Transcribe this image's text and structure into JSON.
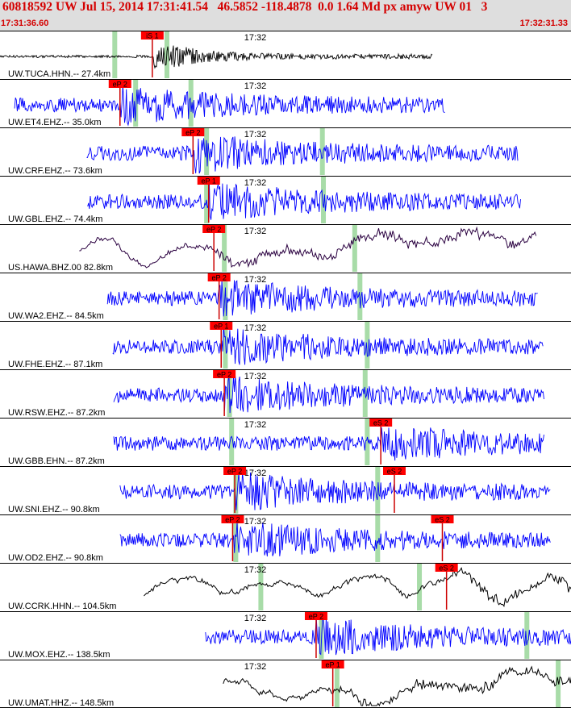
{
  "header": {
    "event_line": "60818592 UW Jul 15, 2014 17:31:41.54   46.5852 -118.4878  0.0 1.64 Md px amyw UW 01   3",
    "start_time": "17:31:36.60",
    "end_time": "17:32:31.33"
  },
  "colors": {
    "header_bg": "#dedede",
    "header_text": "#d40000",
    "pick_box": "#ff0000",
    "pick_line": "#cc0000",
    "trace_blue": "#0000ff",
    "trace_black": "#000000",
    "trace_purple": "#2a0040",
    "marker_green": "#a8dca8",
    "separator": "#000000"
  },
  "minute_mark_label": "17:32",
  "chart_data": {
    "type": "seismogram",
    "title": "60818592 UW Jul 15, 2014 17:31:41.54   46.5852 -118.4878  0.0 1.64 Md px amyw UW 01   3",
    "x_start": "17:31:36.60",
    "x_end": "17:32:31.33",
    "x_tick": "17:32",
    "series": [
      {
        "name": "UW.TUCA.HHN.--",
        "distance": "27.4km",
        "color": "black",
        "picks": [
          {
            "label": "iS 1",
            "t": 14.6
          }
        ],
        "green_markers": [
          11.0,
          16.0
        ],
        "signal": {
          "start": 0.0,
          "end": 41.5
        }
      },
      {
        "name": "UW.ET4.EHZ.--",
        "distance": "35.0km",
        "color": "blue",
        "picks": [
          {
            "label": "eP 2",
            "t": 11.5
          }
        ],
        "green_markers": [
          13.0,
          18.3
        ],
        "signal": {
          "start": 1.4,
          "end": 42.7
        }
      },
      {
        "name": "UW.CRF.EHZ.--",
        "distance": "73.6km",
        "color": "blue",
        "picks": [
          {
            "label": "eP 2",
            "t": 18.5
          }
        ],
        "green_markers": [
          19.8,
          30.9
        ],
        "signal": {
          "start": 8.3,
          "end": 49.7
        }
      },
      {
        "name": "UW.GBL.EHZ.--",
        "distance": "74.4km",
        "color": "blue",
        "picks": [
          {
            "label": "eP 1",
            "t": 20.0
          }
        ],
        "green_markers": [
          19.8,
          31.0
        ],
        "signal": {
          "start": 8.4,
          "end": 49.9
        }
      },
      {
        "name": "US.HAWA.BHZ.00",
        "distance": "82.8km",
        "color": "purple",
        "picks": [
          {
            "label": "eP 2",
            "t": 20.5
          }
        ],
        "green_markers": [
          21.5,
          34.0
        ],
        "signal": {
          "start": 7.6,
          "end": 51.4
        }
      },
      {
        "name": "UW.WA2.EHZ.--",
        "distance": "84.5km",
        "color": "blue",
        "picks": [
          {
            "label": "eP 2",
            "t": 21.0
          }
        ],
        "green_markers": [
          21.6,
          34.5
        ],
        "signal": {
          "start": 10.3,
          "end": 51.6
        }
      },
      {
        "name": "UW.FHE.EHZ.--",
        "distance": "87.1km",
        "color": "blue",
        "picks": [
          {
            "label": "eP 1",
            "t": 21.2
          }
        ],
        "green_markers": [
          21.6,
          35.2
        ],
        "signal": {
          "start": 10.8,
          "end": 52.1
        }
      },
      {
        "name": "UW.RSW.EHZ.--",
        "distance": "87.2km",
        "color": "blue",
        "picks": [
          {
            "label": "eP 2",
            "t": 21.5
          }
        ],
        "green_markers": [
          22.0,
          35.0
        ],
        "signal": {
          "start": 10.9,
          "end": 52.2
        }
      },
      {
        "name": "UW.GBB.EHN.--",
        "distance": "87.2km",
        "color": "blue",
        "picks": [
          {
            "label": "eS 2",
            "t": 36.5
          }
        ],
        "green_markers": [
          22.2,
          35.2
        ],
        "signal": {
          "start": 10.9,
          "end": 52.2
        }
      },
      {
        "name": "UW.SNI.EHZ.--",
        "distance": "90.8km",
        "color": "blue",
        "picks": [
          {
            "label": "eP 2",
            "t": 22.5
          },
          {
            "label": "eS 2",
            "t": 37.8
          }
        ],
        "green_markers": [
          22.6,
          36.2
        ],
        "signal": {
          "start": 11.5,
          "end": 52.8
        }
      },
      {
        "name": "UW.OD2.EHZ.--",
        "distance": "90.8km",
        "color": "blue",
        "picks": [
          {
            "label": "eP 2",
            "t": 22.3
          },
          {
            "label": "eS 2",
            "t": 42.4
          }
        ],
        "green_markers": [
          22.6,
          36.2
        ],
        "signal": {
          "start": 11.5,
          "end": 52.8
        }
      },
      {
        "name": "UW.CCRK.HHN.--",
        "distance": "104.5km",
        "color": "black",
        "picks": [
          {
            "label": "eS 2",
            "t": 42.8
          }
        ],
        "green_markers": [
          25.0,
          40.2
        ],
        "signal": {
          "start": 13.8,
          "end": 55.2
        }
      },
      {
        "name": "UW.MOX.EHZ.--",
        "distance": "138.5km",
        "color": "blue",
        "picks": [
          {
            "label": "eP 2",
            "t": 30.3
          }
        ],
        "green_markers": [
          30.8,
          50.5
        ],
        "signal": {
          "start": 19.7,
          "end": 61.1
        }
      },
      {
        "name": "UW.UMAT.HHZ.--",
        "distance": "148.5km",
        "color": "black",
        "picks": [
          {
            "label": "eP 1",
            "t": 31.9
          }
        ],
        "green_markers": [
          32.3,
          53.5
        ],
        "signal": {
          "start": 21.4,
          "end": 62.8
        }
      }
    ]
  }
}
